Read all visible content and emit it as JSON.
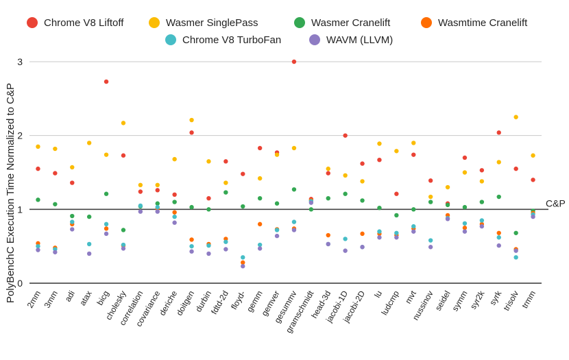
{
  "chart_data": {
    "type": "scatter",
    "xlabel": "",
    "ylabel": "PolyBenchC Execution Time Normalized to C&P",
    "ylim": [
      0,
      3
    ],
    "yticks": [
      0,
      1,
      2,
      3
    ],
    "grid": true,
    "legend_position": "top",
    "reference_line": {
      "value": 1,
      "label": "C&P"
    },
    "categories": [
      "2mm",
      "3mm",
      "adi",
      "atax",
      "bicg",
      "cholesky",
      "correlation",
      "covariance",
      "deriche",
      "doitgen",
      "durbin",
      "fdtd-2d",
      "floyd-",
      "gemm",
      "gemver",
      "gesummv",
      "gramschmidt",
      "head-3d",
      "jacobi-1D",
      "jacobi-2D",
      "lu",
      "ludcmp",
      "mvt",
      "nussinov",
      "seidel",
      "symm",
      "syr2k",
      "syrk",
      "trisolv",
      "trmm"
    ],
    "series": [
      {
        "name": "Chrome V8 Liftoff",
        "color": "#ea4335",
        "values": [
          1.55,
          1.49,
          1.36,
          null,
          2.73,
          1.73,
          1.24,
          1.26,
          1.2,
          2.04,
          1.15,
          1.65,
          1.48,
          1.83,
          1.77,
          3.0,
          1.14,
          1.49,
          2.0,
          1.62,
          1.67,
          1.21,
          1.74,
          1.39,
          1.08,
          1.7,
          1.53,
          2.04,
          1.55,
          1.4
        ]
      },
      {
        "name": "Wasmer SinglePass",
        "color": "#fbbc04",
        "values": [
          1.85,
          1.82,
          1.57,
          1.9,
          1.74,
          2.17,
          1.33,
          1.33,
          1.68,
          2.21,
          1.65,
          1.36,
          null,
          1.42,
          1.74,
          1.83,
          1.12,
          1.55,
          1.46,
          1.38,
          1.89,
          1.79,
          1.9,
          1.17,
          1.3,
          1.5,
          1.38,
          1.64,
          2.25,
          1.73
        ]
      },
      {
        "name": "Wasmer Cranelift",
        "color": "#34a853",
        "values": [
          1.13,
          1.07,
          0.91,
          0.9,
          1.21,
          0.72,
          1.04,
          1.08,
          1.1,
          1.03,
          1.0,
          1.23,
          1.04,
          1.15,
          1.08,
          1.27,
          1.0,
          1.15,
          1.21,
          1.12,
          1.02,
          0.92,
          1.0,
          1.1,
          1.06,
          1.03,
          1.1,
          1.17,
          0.68,
          0.98
        ]
      },
      {
        "name": "Wasmtime Cranelift",
        "color": "#ff6d01",
        "values": [
          0.54,
          0.48,
          0.8,
          null,
          0.74,
          0.51,
          null,
          1.01,
          0.96,
          0.59,
          0.53,
          0.6,
          0.28,
          0.8,
          0.73,
          0.74,
          1.12,
          0.65,
          null,
          0.67,
          0.67,
          0.65,
          0.74,
          null,
          0.92,
          0.75,
          0.8,
          0.68,
          0.46,
          0.95
        ]
      },
      {
        "name": "Chrome V8 TurboFan",
        "color": "#46bdc6",
        "values": [
          0.5,
          0.46,
          0.83,
          0.53,
          0.8,
          0.52,
          1.05,
          1.03,
          0.9,
          0.5,
          0.51,
          0.56,
          0.35,
          0.52,
          0.72,
          0.83,
          1.11,
          0.53,
          0.6,
          0.49,
          0.7,
          0.68,
          0.77,
          0.58,
          0.88,
          0.81,
          0.85,
          0.62,
          0.35,
          0.93
        ]
      },
      {
        "name": "WAVM (LLVM)",
        "color": "#8e7cc3",
        "values": [
          0.45,
          0.42,
          0.73,
          0.4,
          0.67,
          0.47,
          0.97,
          0.97,
          0.82,
          0.43,
          0.4,
          0.46,
          0.23,
          0.47,
          0.64,
          0.72,
          1.09,
          0.53,
          0.44,
          0.49,
          0.62,
          0.62,
          0.7,
          0.49,
          0.87,
          0.7,
          0.77,
          0.51,
          0.44,
          0.9
        ]
      }
    ]
  }
}
